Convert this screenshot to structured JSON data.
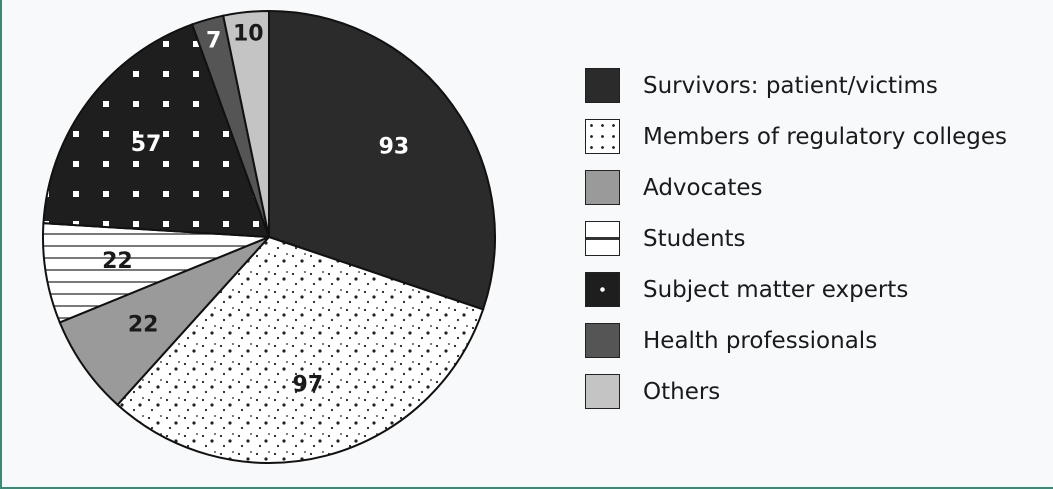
{
  "chart_data": {
    "type": "pie",
    "title": "",
    "legend_position": "right",
    "slices": [
      {
        "label": "Survivors: patient/victims",
        "value": 93,
        "color": "#2b2b2b",
        "fill": "solid",
        "label_color": "#ffffff"
      },
      {
        "label": "Members of regulatory colleges",
        "value": 97,
        "color": "#ffffff",
        "fill": "dots",
        "label_color": "#1a1a1a"
      },
      {
        "label": "Advocates",
        "value": 22,
        "color": "#9a9a9a",
        "fill": "solid",
        "label_color": "#1a1a1a"
      },
      {
        "label": "Students",
        "value": 22,
        "color": "#ffffff",
        "fill": "horizontal-lines",
        "label_color": "#1a1a1a"
      },
      {
        "label": "Subject matter experts",
        "value": 57,
        "color": "#1e1e1e",
        "fill": "dark-with-white-dots",
        "label_color": "#ffffff"
      },
      {
        "label": "Health professionals",
        "value": 7,
        "color": "#555555",
        "fill": "solid",
        "label_color": "#ffffff"
      },
      {
        "label": "Others",
        "value": 10,
        "color": "#c4c4c4",
        "fill": "solid",
        "label_color": "#1a1a1a"
      }
    ]
  }
}
